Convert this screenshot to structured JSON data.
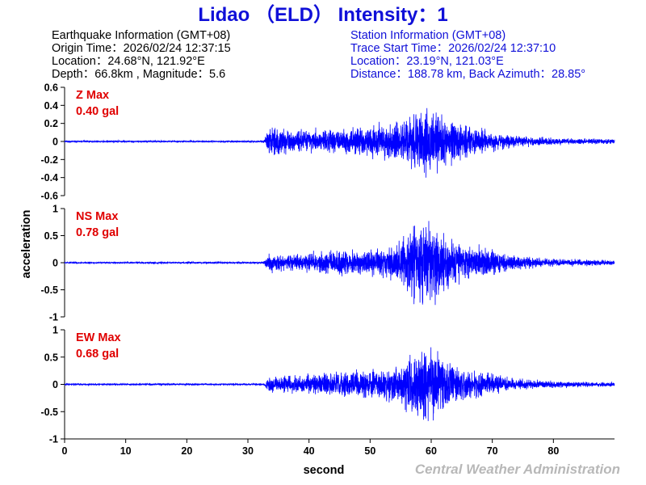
{
  "title": "Lidao （ELD） Intensity：1",
  "earthquake_info": {
    "header": "Earthquake Information  (GMT+08)",
    "origin_time": "Origin Time：2026/02/24 12:37:15",
    "location": "Location：24.68°N, 121.92°E",
    "depth_magnitude": "Depth：66.8km , Magnitude：5.6"
  },
  "station_info": {
    "header": "Station Information  (GMT+08)",
    "trace_start": "Trace Start Time：2026/02/24 12:37:10",
    "location": "Location：23.19°N, 121.03°E",
    "distance": "Distance：188.78 km, Back Azimuth：28.85°"
  },
  "credit": "Central Weather Administration",
  "colors": {
    "title": "#1010d8",
    "trace": "#0000ff",
    "max_label": "#e00000",
    "credit": "#b8b8b8"
  },
  "chart_data": [
    {
      "type": "line",
      "panel": "Z",
      "max_label": "Z Max",
      "max_value": "0.40 gal",
      "ylim": [
        -0.6,
        0.6
      ],
      "yticks": [
        "0.6",
        "0.4",
        "0.2",
        "0",
        "-0.2",
        "-0.4",
        "-0.6"
      ],
      "amp": 0.4,
      "xlim": [
        0,
        90
      ],
      "envelope": [
        [
          0,
          0.01
        ],
        [
          32.5,
          0.01
        ],
        [
          33.5,
          0.15
        ],
        [
          38,
          0.12
        ],
        [
          45,
          0.13
        ],
        [
          50,
          0.16
        ],
        [
          55,
          0.22
        ],
        [
          57,
          0.28
        ],
        [
          59,
          0.38
        ],
        [
          61,
          0.33
        ],
        [
          63,
          0.26
        ],
        [
          66,
          0.19
        ],
        [
          69,
          0.12
        ],
        [
          73,
          0.07
        ],
        [
          80,
          0.035
        ],
        [
          90,
          0.025
        ]
      ]
    },
    {
      "type": "line",
      "panel": "NS",
      "max_label": "NS Max",
      "max_value": "0.78 gal",
      "ylim": [
        -1,
        1
      ],
      "yticks": [
        "1",
        "0.5",
        "0",
        "-0.5",
        "-1"
      ],
      "amp": 0.78,
      "xlim": [
        0,
        90
      ],
      "envelope": [
        [
          0,
          0.015
        ],
        [
          32.5,
          0.015
        ],
        [
          33.5,
          0.14
        ],
        [
          38,
          0.15
        ],
        [
          45,
          0.2
        ],
        [
          50,
          0.22
        ],
        [
          54,
          0.3
        ],
        [
          56,
          0.5
        ],
        [
          58,
          0.75
        ],
        [
          60,
          0.7
        ],
        [
          62,
          0.45
        ],
        [
          65,
          0.3
        ],
        [
          69,
          0.25
        ],
        [
          72,
          0.15
        ],
        [
          78,
          0.07
        ],
        [
          90,
          0.04
        ]
      ]
    },
    {
      "type": "line",
      "panel": "EW",
      "max_label": "EW Max",
      "max_value": "0.68 gal",
      "ylim": [
        -1,
        1
      ],
      "yticks": [
        "1",
        "0.5",
        "0",
        "-0.5",
        "-1"
      ],
      "amp": 0.68,
      "xlim": [
        0,
        90
      ],
      "envelope": [
        [
          0,
          0.015
        ],
        [
          32.5,
          0.015
        ],
        [
          33.5,
          0.12
        ],
        [
          38,
          0.14
        ],
        [
          45,
          0.2
        ],
        [
          50,
          0.22
        ],
        [
          54,
          0.3
        ],
        [
          56,
          0.45
        ],
        [
          58,
          0.65
        ],
        [
          60,
          0.55
        ],
        [
          62,
          0.4
        ],
        [
          65,
          0.28
        ],
        [
          69,
          0.2
        ],
        [
          72,
          0.12
        ],
        [
          78,
          0.06
        ],
        [
          90,
          0.035
        ]
      ]
    }
  ],
  "x_axis": {
    "label": "second",
    "ticks": [
      "0",
      "10",
      "20",
      "30",
      "40",
      "50",
      "60",
      "70",
      "80"
    ]
  },
  "y_axis": {
    "label": "acceleration"
  }
}
